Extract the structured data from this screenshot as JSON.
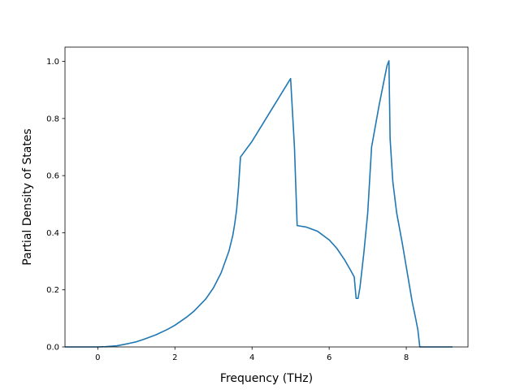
{
  "chart_data": {
    "type": "line",
    "title": "",
    "xlabel": "Frequency (THz)",
    "ylabel": "Partial Density of States",
    "xlim": [
      -0.85,
      9.6
    ],
    "ylim": [
      0.0,
      1.05
    ],
    "x_ticks": [
      0,
      2,
      4,
      6,
      8
    ],
    "y_ticks": [
      0.0,
      0.2,
      0.4,
      0.6,
      0.8,
      1.0
    ],
    "x_tick_labels": [
      "0",
      "2",
      "4",
      "6",
      "8"
    ],
    "y_tick_labels": [
      "0.0",
      "0.2",
      "0.4",
      "0.6",
      "0.8",
      "1.0"
    ],
    "grid": false,
    "legend": null,
    "colors": {
      "line": "#1f77b4"
    },
    "series": [
      {
        "x": [
          -0.85,
          0.0,
          0.2,
          0.5,
          0.8,
          1.0,
          1.2,
          1.5,
          1.8,
          2.0,
          2.3,
          2.5,
          2.8,
          3.0,
          3.2,
          3.4,
          3.5,
          3.55,
          3.6,
          3.65,
          3.7,
          4.0,
          4.5,
          5.0,
          5.1,
          5.17,
          5.4,
          5.7,
          6.0,
          6.2,
          6.4,
          6.55,
          6.65,
          6.7,
          6.75,
          6.8,
          6.9,
          7.0,
          7.1,
          7.3,
          7.5,
          7.55,
          7.58,
          7.65,
          7.75,
          7.9,
          8.05,
          8.15,
          8.25,
          8.3,
          8.35,
          8.4,
          9.2
        ],
        "y": [
          0.0,
          0.0,
          0.001,
          0.004,
          0.012,
          0.018,
          0.027,
          0.042,
          0.061,
          0.076,
          0.104,
          0.126,
          0.168,
          0.207,
          0.26,
          0.335,
          0.39,
          0.43,
          0.48,
          0.56,
          0.665,
          0.72,
          0.83,
          0.94,
          0.7,
          0.425,
          0.42,
          0.405,
          0.375,
          0.345,
          0.305,
          0.27,
          0.245,
          0.17,
          0.17,
          0.21,
          0.33,
          0.47,
          0.7,
          0.85,
          0.985,
          1.002,
          0.73,
          0.58,
          0.47,
          0.36,
          0.24,
          0.16,
          0.095,
          0.06,
          0.0,
          0.0,
          0.0
        ]
      }
    ]
  }
}
